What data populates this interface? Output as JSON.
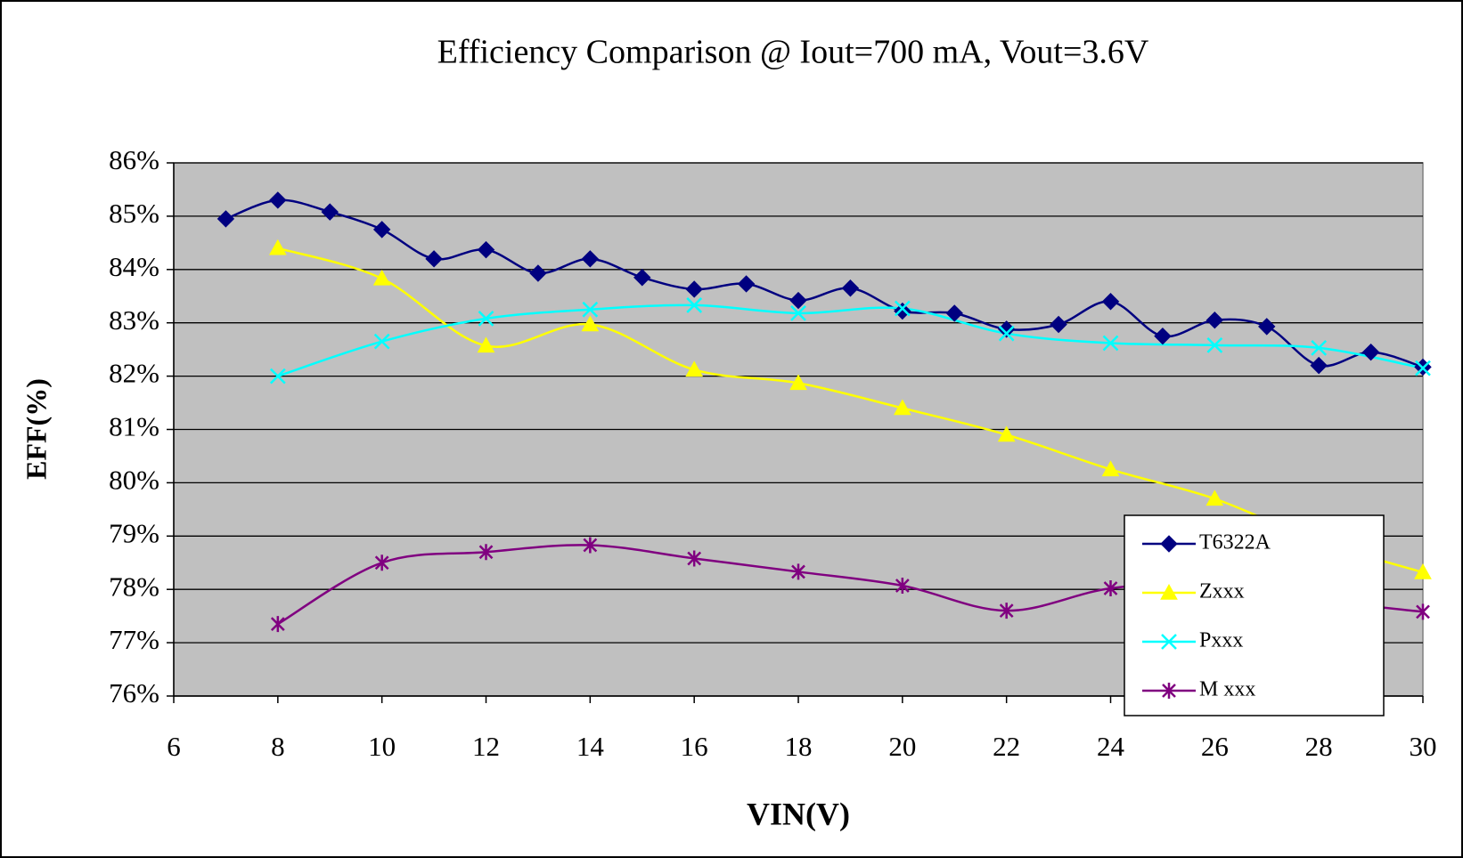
{
  "chart_data": {
    "type": "line",
    "title": "Efficiency Comparison @ Iout=700 mA, Vout=3.6V",
    "x_label": "VIN(V)",
    "y_label": "EFF(%)",
    "xlim": [
      6,
      30
    ],
    "xticks": [
      6,
      8,
      10,
      12,
      14,
      16,
      18,
      20,
      22,
      24,
      26,
      28,
      30
    ],
    "ylim": [
      76,
      86
    ],
    "yticks": [
      {
        "value": 76,
        "label": "76%"
      },
      {
        "value": 77,
        "label": "77%"
      },
      {
        "value": 78,
        "label": "78%"
      },
      {
        "value": 79,
        "label": "79%"
      },
      {
        "value": 80,
        "label": "80%"
      },
      {
        "value": 81,
        "label": "81%"
      },
      {
        "value": 82,
        "label": "82%"
      },
      {
        "value": 83,
        "label": "83%"
      },
      {
        "value": 84,
        "label": "84%"
      },
      {
        "value": 85,
        "label": "85%"
      },
      {
        "value": 86,
        "label": "86%"
      }
    ],
    "grid": true,
    "legend": "lower right",
    "series": [
      {
        "name": "T6322A",
        "color": "#000080",
        "marker": "diamond",
        "x": [
          7,
          8,
          9,
          10,
          11,
          12,
          13,
          14,
          15,
          16,
          17,
          18,
          19,
          20,
          21,
          22,
          23,
          24,
          25,
          26,
          27,
          28,
          29,
          30
        ],
        "values": [
          84.95,
          85.3,
          85.08,
          84.75,
          84.2,
          84.37,
          83.93,
          84.2,
          83.85,
          83.63,
          83.73,
          83.42,
          83.65,
          83.22,
          83.18,
          82.88,
          82.97,
          83.4,
          82.75,
          83.05,
          82.93,
          82.2,
          82.45,
          82.17
        ]
      },
      {
        "name": "Zxxx",
        "color": "#ffff00",
        "marker": "triangle",
        "x": [
          8,
          10,
          12,
          14,
          16,
          18,
          20,
          22,
          24,
          26,
          28,
          30
        ],
        "values": [
          84.4,
          83.83,
          82.57,
          82.97,
          82.12,
          81.87,
          81.4,
          80.9,
          80.25,
          79.7,
          78.9,
          78.32
        ]
      },
      {
        "name": "Pxxx",
        "color": "#00ffff",
        "marker": "x",
        "x": [
          8,
          10,
          12,
          14,
          16,
          18,
          20,
          22,
          24,
          26,
          28,
          30
        ],
        "values": [
          82.0,
          82.65,
          83.08,
          83.25,
          83.33,
          83.18,
          83.27,
          82.8,
          82.62,
          82.58,
          82.53,
          82.15
        ]
      },
      {
        "name": "M xxx",
        "color": "#800080",
        "marker": "star",
        "x": [
          8,
          10,
          12,
          14,
          16,
          18,
          20,
          22,
          24,
          26,
          28,
          30
        ],
        "values": [
          77.35,
          78.5,
          78.7,
          78.83,
          78.58,
          78.33,
          78.07,
          77.6,
          78.02,
          78.1,
          77.8,
          77.58
        ]
      }
    ]
  }
}
